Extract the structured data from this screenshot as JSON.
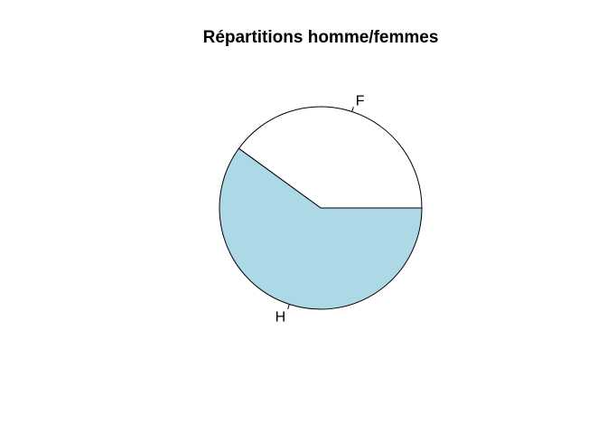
{
  "chart_data": {
    "type": "pie",
    "title": "Répartitions homme/femmes",
    "labels": [
      "F",
      "H"
    ],
    "values": [
      40,
      60
    ],
    "colors": [
      "#ffffff",
      "#add8e6"
    ],
    "start_angle_deg": 0,
    "direction": "counterclockwise",
    "legend": "none",
    "border_color": "#000000"
  }
}
